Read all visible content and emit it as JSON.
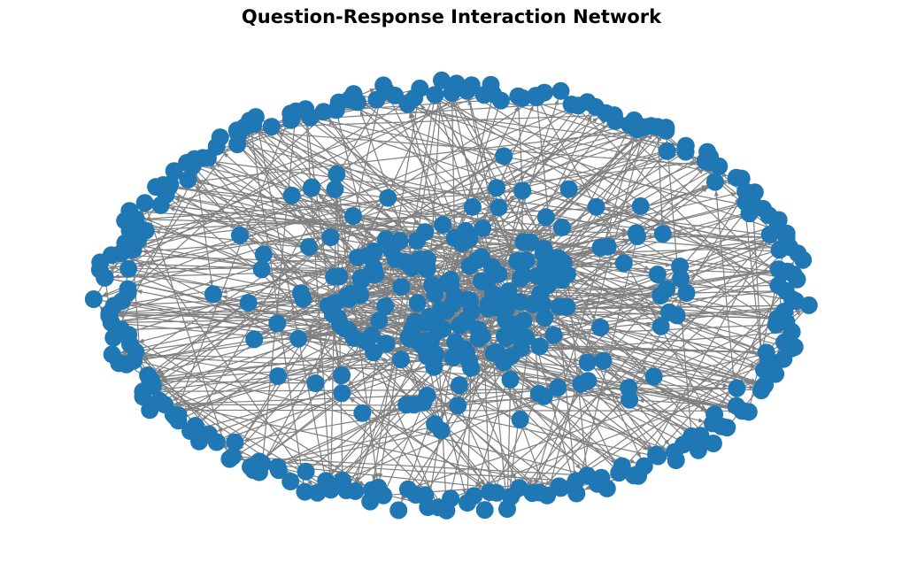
{
  "title": "Question-Response Interaction Network",
  "colors": {
    "node": "#1f77b4",
    "edge": "#808080",
    "background": "#ffffff"
  }
}
